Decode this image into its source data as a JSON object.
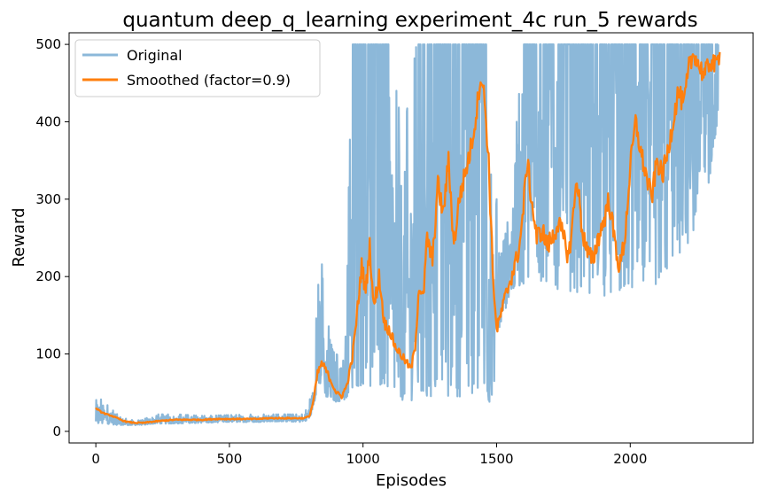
{
  "chart_data": {
    "type": "line",
    "title": "quantum deep_q_learning experiment_4c run_5 rewards",
    "xlabel": "Episodes",
    "ylabel": "Reward",
    "xlim": [
      -100,
      2460
    ],
    "ylim": [
      -15,
      515
    ],
    "xticks": [
      0,
      500,
      1000,
      1500,
      2000
    ],
    "yticks": [
      0,
      100,
      200,
      300,
      400,
      500
    ],
    "grid": false,
    "legend_position": "top-left",
    "series": [
      {
        "name": "Original",
        "color": "#8cb8d9",
        "envelope": [
          [
            0,
            8,
            47
          ],
          [
            40,
            10,
            35
          ],
          [
            80,
            8,
            22
          ],
          [
            120,
            8,
            15
          ],
          [
            170,
            8,
            14
          ],
          [
            220,
            10,
            22
          ],
          [
            300,
            10,
            22
          ],
          [
            400,
            11,
            20
          ],
          [
            500,
            12,
            21
          ],
          [
            600,
            12,
            22
          ],
          [
            700,
            13,
            22
          ],
          [
            780,
            12,
            22
          ],
          [
            800,
            15,
            40
          ],
          [
            820,
            40,
            70
          ],
          [
            830,
            60,
            222
          ],
          [
            845,
            60,
            222
          ],
          [
            860,
            45,
            130
          ],
          [
            880,
            40,
            140
          ],
          [
            900,
            38,
            100
          ],
          [
            930,
            40,
            90
          ],
          [
            960,
            55,
            500
          ],
          [
            1000,
            60,
            500
          ],
          [
            1050,
            55,
            500
          ],
          [
            1100,
            45,
            500
          ],
          [
            1150,
            40,
            380
          ],
          [
            1200,
            40,
            500
          ],
          [
            1300,
            45,
            500
          ],
          [
            1400,
            45,
            500
          ],
          [
            1450,
            60,
            500
          ],
          [
            1470,
            40,
            500
          ],
          [
            1485,
            28,
            220
          ],
          [
            1500,
            120,
            300
          ],
          [
            1520,
            140,
            280
          ],
          [
            1550,
            180,
            300
          ],
          [
            1600,
            190,
            500
          ],
          [
            1700,
            185,
            500
          ],
          [
            1800,
            180,
            500
          ],
          [
            1900,
            175,
            500
          ],
          [
            2000,
            180,
            500
          ],
          [
            2100,
            190,
            500
          ],
          [
            2200,
            230,
            500
          ],
          [
            2250,
            260,
            500
          ],
          [
            2300,
            300,
            500
          ],
          [
            2330,
            420,
            500
          ]
        ]
      },
      {
        "name": "Smoothed (factor=0.9)",
        "color": "#ff7f0e",
        "x": [
          0,
          20,
          40,
          60,
          80,
          100,
          120,
          150,
          180,
          200,
          230,
          260,
          300,
          350,
          400,
          450,
          500,
          550,
          600,
          650,
          700,
          750,
          780,
          800,
          815,
          830,
          845,
          860,
          880,
          900,
          920,
          940,
          960,
          980,
          995,
          1010,
          1025,
          1040,
          1060,
          1080,
          1100,
          1120,
          1140,
          1160,
          1180,
          1195,
          1210,
          1225,
          1240,
          1260,
          1280,
          1300,
          1320,
          1340,
          1360,
          1380,
          1400,
          1420,
          1440,
          1455,
          1470,
          1485,
          1500,
          1515,
          1530,
          1550,
          1570,
          1590,
          1600,
          1615,
          1630,
          1650,
          1670,
          1690,
          1710,
          1730,
          1750,
          1770,
          1790,
          1800,
          1820,
          1840,
          1860,
          1880,
          1900,
          1920,
          1940,
          1960,
          1980,
          2000,
          2020,
          2040,
          2060,
          2080,
          2100,
          2120,
          2140,
          2160,
          2180,
          2200,
          2220,
          2240,
          2260,
          2280,
          2300,
          2320,
          2335
        ],
        "values": [
          30,
          25,
          22,
          20,
          17,
          14,
          12,
          11,
          11,
          12,
          13,
          14,
          15,
          15,
          15,
          16,
          16,
          16,
          16,
          17,
          17,
          17,
          17,
          20,
          40,
          75,
          88,
          80,
          65,
          50,
          45,
          60,
          95,
          160,
          215,
          180,
          240,
          160,
          200,
          140,
          130,
          110,
          100,
          90,
          80,
          110,
          190,
          170,
          250,
          220,
          320,
          280,
          350,
          240,
          300,
          330,
          360,
          400,
          460,
          430,
          350,
          210,
          130,
          150,
          170,
          195,
          215,
          250,
          290,
          350,
          300,
          250,
          260,
          240,
          250,
          270,
          250,
          225,
          290,
          330,
          260,
          230,
          220,
          250,
          270,
          300,
          250,
          210,
          250,
          340,
          400,
          360,
          330,
          300,
          350,
          330,
          360,
          400,
          440,
          420,
          470,
          490,
          470,
          460,
          480,
          470,
          490
        ]
      }
    ]
  }
}
